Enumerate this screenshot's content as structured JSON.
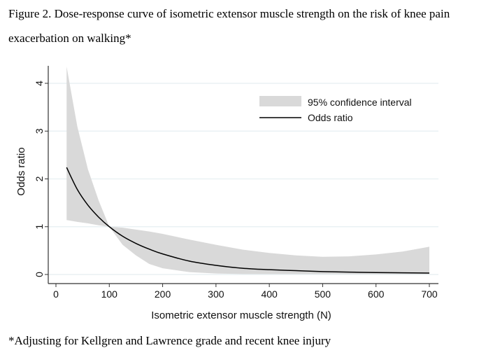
{
  "figure": {
    "caption_line1": "Figure 2. Dose-response curve of isometric extensor muscle strength on the risk of knee pain",
    "caption_line2": "exacerbation on walking*",
    "footnote": "*Adjusting for Kellgren and Lawrence grade and recent knee injury"
  },
  "chart_data": {
    "type": "line",
    "title": "Dose-response curve of isometric extensor muscle strength on the risk of knee pain exacerbation on walking",
    "xlabel": "Isometric extensor muscle strength (N)",
    "ylabel": "Odds ratio",
    "xlim": [
      -15,
      715
    ],
    "ylim": [
      -0.1,
      4.5
    ],
    "xticks": [
      0,
      100,
      200,
      300,
      400,
      500,
      600,
      700
    ],
    "yticks": [
      0,
      1,
      2,
      3,
      4
    ],
    "grid": "horizontal",
    "legend_position": "top-right",
    "legend": [
      "95% confidence interval",
      "Odds ratio"
    ],
    "colors": {
      "ci_fill": "#d9d9d9",
      "line": "#000000",
      "grid": "#eaf1f4",
      "axis": "#333333"
    },
    "series": [
      {
        "name": "Odds ratio",
        "kind": "line",
        "x": [
          20,
          40,
          60,
          80,
          100,
          125,
          150,
          175,
          200,
          250,
          300,
          350,
          400,
          450,
          500,
          550,
          600,
          650,
          700
        ],
        "y": [
          2.24,
          1.78,
          1.45,
          1.2,
          1.0,
          0.8,
          0.65,
          0.53,
          0.43,
          0.28,
          0.19,
          0.13,
          0.1,
          0.08,
          0.06,
          0.05,
          0.04,
          0.035,
          0.03
        ]
      },
      {
        "name": "95% confidence interval",
        "kind": "band",
        "x": [
          20,
          40,
          60,
          80,
          100,
          125,
          150,
          175,
          200,
          250,
          300,
          350,
          400,
          450,
          500,
          550,
          600,
          650,
          700
        ],
        "lower": [
          1.14,
          1.1,
          1.07,
          1.03,
          1.0,
          0.62,
          0.4,
          0.22,
          0.13,
          0.05,
          0.02,
          0.01,
          0.01,
          0.01,
          0.01,
          0.01,
          0.01,
          0.01,
          0.01
        ],
        "upper": [
          4.35,
          3.1,
          2.2,
          1.55,
          1.0,
          0.98,
          0.94,
          0.9,
          0.85,
          0.73,
          0.62,
          0.52,
          0.45,
          0.4,
          0.37,
          0.38,
          0.42,
          0.48,
          0.58
        ]
      }
    ]
  }
}
